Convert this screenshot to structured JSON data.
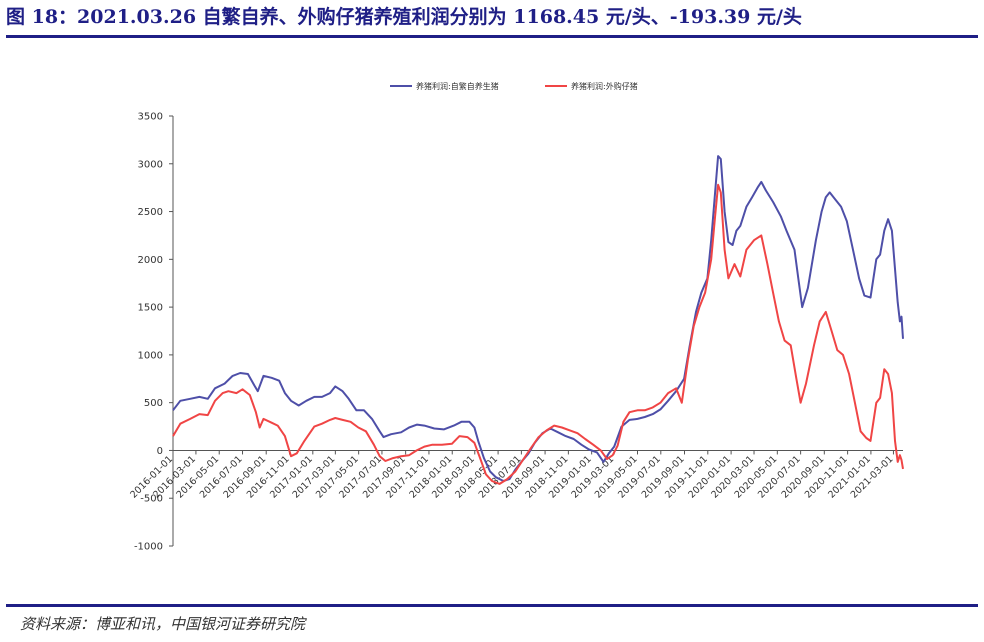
{
  "figure": {
    "title": "图 18：2021.03.26 自繁自养、外购仔猪养殖利润分别为 1168.45 元/头、-193.39 元/头",
    "source": "资料来源：博亚和讯，中国银河证券研究院"
  },
  "chart_data": {
    "type": "line",
    "title": "",
    "xlabel": "",
    "ylabel": "",
    "ylim": [
      -1000,
      3500
    ],
    "yticks": [
      -1000,
      -500,
      0,
      500,
      1000,
      1500,
      2000,
      2500,
      3000,
      3500
    ],
    "xticks": [
      "2016-01-01",
      "2016-03-01",
      "2016-05-01",
      "2016-07-01",
      "2016-09-01",
      "2016-11-01",
      "2017-01-01",
      "2017-03-01",
      "2017-05-01",
      "2017-07-01",
      "2017-09-01",
      "2017-11-01",
      "2018-01-01",
      "2018-03-01",
      "2018-05-01",
      "2018-07-01",
      "2018-09-01",
      "2018-11-01",
      "2019-01-01",
      "2019-03-01",
      "2019-05-01",
      "2019-07-01",
      "2019-09-01",
      "2019-11-01",
      "2020-01-01",
      "2020-03-01",
      "2020-05-01",
      "2020-07-01",
      "2020-09-01",
      "2020-11-01",
      "2021-01-01",
      "2021-03-01"
    ],
    "x_range": [
      "2016-01-01",
      "2021-03-26"
    ],
    "grid": false,
    "legend": "top-center",
    "series": [
      {
        "name": "养猪利润:自繁自养生猪",
        "color": "#4e4fa8",
        "points": [
          [
            "2016-01-01",
            420
          ],
          [
            "2016-01-20",
            520
          ],
          [
            "2016-02-15",
            540
          ],
          [
            "2016-03-10",
            560
          ],
          [
            "2016-04-01",
            540
          ],
          [
            "2016-04-20",
            650
          ],
          [
            "2016-05-15",
            700
          ],
          [
            "2016-06-05",
            780
          ],
          [
            "2016-06-25",
            810
          ],
          [
            "2016-07-15",
            800
          ],
          [
            "2016-08-01",
            680
          ],
          [
            "2016-08-10",
            620
          ],
          [
            "2016-08-25",
            780
          ],
          [
            "2016-09-15",
            760
          ],
          [
            "2016-10-05",
            730
          ],
          [
            "2016-10-20",
            600
          ],
          [
            "2016-11-05",
            520
          ],
          [
            "2016-11-25",
            470
          ],
          [
            "2016-12-15",
            520
          ],
          [
            "2017-01-05",
            560
          ],
          [
            "2017-01-25",
            560
          ],
          [
            "2017-02-15",
            600
          ],
          [
            "2017-03-01",
            670
          ],
          [
            "2017-03-20",
            620
          ],
          [
            "2017-04-05",
            540
          ],
          [
            "2017-04-25",
            420
          ],
          [
            "2017-05-15",
            420
          ],
          [
            "2017-06-05",
            330
          ],
          [
            "2017-06-25",
            200
          ],
          [
            "2017-07-05",
            140
          ],
          [
            "2017-07-25",
            170
          ],
          [
            "2017-08-20",
            190
          ],
          [
            "2017-09-10",
            240
          ],
          [
            "2017-10-01",
            270
          ],
          [
            "2017-10-20",
            260
          ],
          [
            "2017-11-15",
            230
          ],
          [
            "2017-12-10",
            220
          ],
          [
            "2018-01-05",
            260
          ],
          [
            "2018-01-25",
            300
          ],
          [
            "2018-02-15",
            300
          ],
          [
            "2018-02-28",
            240
          ],
          [
            "2018-03-10",
            100
          ],
          [
            "2018-03-25",
            -80
          ],
          [
            "2018-04-10",
            -220
          ],
          [
            "2018-04-25",
            -280
          ],
          [
            "2018-05-15",
            -320
          ],
          [
            "2018-05-31",
            -300
          ],
          [
            "2018-06-15",
            -200
          ],
          [
            "2018-07-01",
            -120
          ],
          [
            "2018-07-20",
            -30
          ],
          [
            "2018-08-05",
            80
          ],
          [
            "2018-08-25",
            180
          ],
          [
            "2018-09-15",
            230
          ],
          [
            "2018-10-05",
            190
          ],
          [
            "2018-10-25",
            150
          ],
          [
            "2018-11-15",
            120
          ],
          [
            "2018-12-05",
            60
          ],
          [
            "2018-12-25",
            10
          ],
          [
            "2019-01-15",
            -20
          ],
          [
            "2019-02-01",
            -120
          ],
          [
            "2019-02-15",
            -30
          ],
          [
            "2019-03-01",
            40
          ],
          [
            "2019-03-20",
            250
          ],
          [
            "2019-04-10",
            320
          ],
          [
            "2019-05-01",
            330
          ],
          [
            "2019-05-20",
            350
          ],
          [
            "2019-06-10",
            380
          ],
          [
            "2019-06-30",
            430
          ],
          [
            "2019-07-20",
            520
          ],
          [
            "2019-08-10",
            620
          ],
          [
            "2019-08-31",
            750
          ],
          [
            "2019-09-15",
            1100
          ],
          [
            "2019-10-01",
            1450
          ],
          [
            "2019-10-15",
            1650
          ],
          [
            "2019-10-31",
            1800
          ],
          [
            "2019-11-10",
            2200
          ],
          [
            "2019-11-20",
            2700
          ],
          [
            "2019-11-28",
            3080
          ],
          [
            "2019-12-05",
            3050
          ],
          [
            "2019-12-15",
            2500
          ],
          [
            "2019-12-25",
            2180
          ],
          [
            "2020-01-05",
            2150
          ],
          [
            "2020-01-15",
            2300
          ],
          [
            "2020-01-25",
            2350
          ],
          [
            "2020-02-10",
            2550
          ],
          [
            "2020-02-25",
            2650
          ],
          [
            "2020-03-10",
            2750
          ],
          [
            "2020-03-20",
            2810
          ],
          [
            "2020-04-01",
            2720
          ],
          [
            "2020-04-20",
            2600
          ],
          [
            "2020-05-10",
            2450
          ],
          [
            "2020-05-25",
            2300
          ],
          [
            "2020-06-15",
            2100
          ],
          [
            "2020-06-25",
            1800
          ],
          [
            "2020-07-05",
            1500
          ],
          [
            "2020-07-20",
            1700
          ],
          [
            "2020-08-10",
            2200
          ],
          [
            "2020-08-25",
            2500
          ],
          [
            "2020-09-05",
            2650
          ],
          [
            "2020-09-15",
            2700
          ],
          [
            "2020-10-01",
            2620
          ],
          [
            "2020-10-15",
            2550
          ],
          [
            "2020-10-30",
            2400
          ],
          [
            "2020-11-15",
            2100
          ],
          [
            "2020-12-01",
            1800
          ],
          [
            "2020-12-15",
            1620
          ],
          [
            "2020-12-31",
            1600
          ],
          [
            "2021-01-15",
            2000
          ],
          [
            "2021-01-25",
            2050
          ],
          [
            "2021-02-05",
            2300
          ],
          [
            "2021-02-15",
            2420
          ],
          [
            "2021-02-25",
            2300
          ],
          [
            "2021-03-05",
            1900
          ],
          [
            "2021-03-12",
            1550
          ],
          [
            "2021-03-18",
            1350
          ],
          [
            "2021-03-22",
            1400
          ],
          [
            "2021-03-26",
            1168.45
          ]
        ]
      },
      {
        "name": "养猪利润:外购仔猪",
        "color": "#f04545",
        "points": [
          [
            "2016-01-01",
            150
          ],
          [
            "2016-01-20",
            280
          ],
          [
            "2016-02-15",
            330
          ],
          [
            "2016-03-10",
            380
          ],
          [
            "2016-04-01",
            370
          ],
          [
            "2016-04-20",
            520
          ],
          [
            "2016-05-10",
            600
          ],
          [
            "2016-05-25",
            620
          ],
          [
            "2016-06-15",
            600
          ],
          [
            "2016-07-01",
            640
          ],
          [
            "2016-07-20",
            580
          ],
          [
            "2016-08-05",
            400
          ],
          [
            "2016-08-15",
            240
          ],
          [
            "2016-08-25",
            330
          ],
          [
            "2016-09-15",
            290
          ],
          [
            "2016-10-01",
            260
          ],
          [
            "2016-10-20",
            150
          ],
          [
            "2016-11-05",
            -60
          ],
          [
            "2016-11-20",
            -30
          ],
          [
            "2016-12-10",
            100
          ],
          [
            "2017-01-05",
            250
          ],
          [
            "2017-01-25",
            280
          ],
          [
            "2017-02-15",
            320
          ],
          [
            "2017-03-01",
            340
          ],
          [
            "2017-03-20",
            320
          ],
          [
            "2017-04-10",
            300
          ],
          [
            "2017-04-30",
            240
          ],
          [
            "2017-05-20",
            200
          ],
          [
            "2017-06-10",
            60
          ],
          [
            "2017-06-25",
            -60
          ],
          [
            "2017-07-10",
            -110
          ],
          [
            "2017-07-30",
            -80
          ],
          [
            "2017-08-20",
            -60
          ],
          [
            "2017-09-10",
            -50
          ],
          [
            "2017-09-30",
            0
          ],
          [
            "2017-10-20",
            40
          ],
          [
            "2017-11-10",
            60
          ],
          [
            "2017-12-05",
            60
          ],
          [
            "2017-12-31",
            70
          ],
          [
            "2018-01-20",
            150
          ],
          [
            "2018-02-10",
            140
          ],
          [
            "2018-02-28",
            80
          ],
          [
            "2018-03-15",
            -80
          ],
          [
            "2018-03-30",
            -250
          ],
          [
            "2018-04-15",
            -320
          ],
          [
            "2018-05-05",
            -350
          ],
          [
            "2018-05-25",
            -300
          ],
          [
            "2018-06-15",
            -220
          ],
          [
            "2018-07-05",
            -100
          ],
          [
            "2018-07-25",
            20
          ],
          [
            "2018-08-15",
            140
          ],
          [
            "2018-09-05",
            210
          ],
          [
            "2018-09-25",
            260
          ],
          [
            "2018-10-15",
            240
          ],
          [
            "2018-11-05",
            210
          ],
          [
            "2018-11-25",
            180
          ],
          [
            "2018-12-15",
            120
          ],
          [
            "2019-01-05",
            60
          ],
          [
            "2019-01-25",
            0
          ],
          [
            "2019-02-10",
            -90
          ],
          [
            "2019-02-25",
            -50
          ],
          [
            "2019-03-10",
            50
          ],
          [
            "2019-03-25",
            300
          ],
          [
            "2019-04-10",
            400
          ],
          [
            "2019-05-01",
            420
          ],
          [
            "2019-05-20",
            420
          ],
          [
            "2019-06-10",
            450
          ],
          [
            "2019-06-30",
            500
          ],
          [
            "2019-07-20",
            600
          ],
          [
            "2019-08-10",
            650
          ],
          [
            "2019-08-25",
            500
          ],
          [
            "2019-09-10",
            950
          ],
          [
            "2019-09-25",
            1300
          ],
          [
            "2019-10-10",
            1500
          ],
          [
            "2019-10-25",
            1650
          ],
          [
            "2019-11-10",
            2000
          ],
          [
            "2019-11-20",
            2450
          ],
          [
            "2019-11-28",
            2780
          ],
          [
            "2019-12-05",
            2700
          ],
          [
            "2019-12-15",
            2100
          ],
          [
            "2019-12-25",
            1800
          ],
          [
            "2020-01-10",
            1950
          ],
          [
            "2020-01-25",
            1820
          ],
          [
            "2020-02-10",
            2100
          ],
          [
            "2020-03-01",
            2200
          ],
          [
            "2020-03-20",
            2250
          ],
          [
            "2020-04-05",
            1950
          ],
          [
            "2020-04-20",
            1650
          ],
          [
            "2020-05-05",
            1350
          ],
          [
            "2020-05-20",
            1150
          ],
          [
            "2020-06-05",
            1100
          ],
          [
            "2020-06-20",
            750
          ],
          [
            "2020-07-01",
            500
          ],
          [
            "2020-07-15",
            700
          ],
          [
            "2020-08-05",
            1100
          ],
          [
            "2020-08-20",
            1350
          ],
          [
            "2020-09-05",
            1450
          ],
          [
            "2020-09-20",
            1250
          ],
          [
            "2020-10-05",
            1050
          ],
          [
            "2020-10-20",
            1000
          ],
          [
            "2020-11-05",
            800
          ],
          [
            "2020-11-20",
            500
          ],
          [
            "2020-12-05",
            200
          ],
          [
            "2020-12-20",
            130
          ],
          [
            "2020-12-31",
            100
          ],
          [
            "2021-01-15",
            500
          ],
          [
            "2021-01-25",
            550
          ],
          [
            "2021-02-05",
            850
          ],
          [
            "2021-02-15",
            800
          ],
          [
            "2021-02-25",
            600
          ],
          [
            "2021-03-05",
            100
          ],
          [
            "2021-03-12",
            -120
          ],
          [
            "2021-03-18",
            -50
          ],
          [
            "2021-03-22",
            -100
          ],
          [
            "2021-03-26",
            -193.39
          ]
        ]
      }
    ]
  }
}
